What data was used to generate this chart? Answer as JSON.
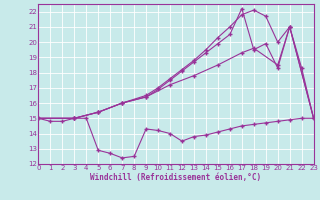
{
  "xlabel": "Windchill (Refroidissement éolien,°C)",
  "bg_color": "#c8eaea",
  "line_color": "#993399",
  "grid_color": "#ffffff",
  "xlim": [
    0,
    23
  ],
  "ylim": [
    12,
    22.5
  ],
  "yticks": [
    12,
    13,
    14,
    15,
    16,
    17,
    18,
    19,
    20,
    21,
    22
  ],
  "xticks": [
    0,
    1,
    2,
    3,
    4,
    5,
    6,
    7,
    8,
    9,
    10,
    11,
    12,
    13,
    14,
    15,
    16,
    17,
    18,
    19,
    20,
    21,
    22,
    23
  ],
  "lines": [
    {
      "x": [
        0,
        1,
        2,
        3,
        4,
        5,
        6,
        7,
        8,
        9,
        10,
        11,
        12,
        13,
        14,
        15,
        16,
        17,
        18,
        19,
        20,
        21,
        22,
        23
      ],
      "y": [
        15,
        14.8,
        14.8,
        15.0,
        15.0,
        12.9,
        12.7,
        12.4,
        12.5,
        14.3,
        14.2,
        14.0,
        13.5,
        13.8,
        13.9,
        14.1,
        14.3,
        14.5,
        14.6,
        14.7,
        14.8,
        14.9,
        15.0,
        15.0
      ]
    },
    {
      "x": [
        0,
        3,
        5,
        7,
        9,
        11,
        13,
        15,
        17,
        18,
        20,
        21,
        23
      ],
      "y": [
        15,
        15,
        15.4,
        16.0,
        16.4,
        17.2,
        17.8,
        18.5,
        19.3,
        19.6,
        18.5,
        21.0,
        15.0
      ]
    },
    {
      "x": [
        0,
        3,
        5,
        7,
        9,
        10,
        11,
        12,
        13,
        14,
        15,
        16,
        17,
        18,
        19,
        20,
        21,
        22,
        23
      ],
      "y": [
        15,
        15,
        15.4,
        16.0,
        16.5,
        17.0,
        17.6,
        18.2,
        18.8,
        19.5,
        20.3,
        21.0,
        21.8,
        22.1,
        21.7,
        20.0,
        21.0,
        18.3,
        15.0
      ]
    },
    {
      "x": [
        0,
        3,
        5,
        7,
        9,
        10,
        11,
        12,
        13,
        14,
        15,
        16,
        17,
        18,
        19,
        20,
        21,
        23
      ],
      "y": [
        15,
        15,
        15.4,
        16.0,
        16.4,
        16.9,
        17.5,
        18.1,
        18.7,
        19.3,
        19.9,
        20.5,
        22.2,
        19.5,
        19.9,
        18.3,
        21.0,
        15.0
      ]
    }
  ]
}
